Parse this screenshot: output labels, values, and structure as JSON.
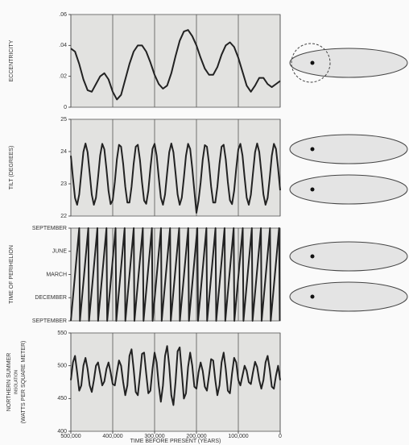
{
  "chart_data": [
    {
      "type": "line",
      "ylabel": [
        "ECCENTRICITY"
      ],
      "color": "#222222",
      "ylim": [
        0,
        0.06
      ],
      "yticks": [
        0,
        {
          "value": 0.02,
          "label": ".02"
        },
        {
          "value": 0.04,
          "label": ".04"
        },
        {
          "value": 0.06,
          "label": ".06"
        }
      ],
      "xlim": [
        500000,
        0
      ],
      "grid": true,
      "x": [
        500000,
        490000,
        480000,
        470000,
        460000,
        450000,
        440000,
        430000,
        420000,
        410000,
        400000,
        390000,
        380000,
        370000,
        360000,
        350000,
        340000,
        330000,
        320000,
        310000,
        300000,
        290000,
        280000,
        270000,
        260000,
        250000,
        240000,
        230000,
        220000,
        210000,
        200000,
        190000,
        180000,
        170000,
        160000,
        150000,
        140000,
        130000,
        120000,
        110000,
        100000,
        90000,
        80000,
        70000,
        60000,
        50000,
        40000,
        30000,
        20000,
        10000,
        0
      ],
      "values": [
        0.038,
        0.036,
        0.028,
        0.018,
        0.011,
        0.01,
        0.015,
        0.02,
        0.022,
        0.018,
        0.01,
        0.005,
        0.008,
        0.018,
        0.028,
        0.036,
        0.04,
        0.04,
        0.036,
        0.029,
        0.021,
        0.015,
        0.012,
        0.014,
        0.022,
        0.033,
        0.043,
        0.049,
        0.05,
        0.046,
        0.04,
        0.032,
        0.025,
        0.021,
        0.021,
        0.026,
        0.034,
        0.04,
        0.042,
        0.039,
        0.032,
        0.023,
        0.014,
        0.01,
        0.014,
        0.019,
        0.019,
        0.015,
        0.013,
        0.015,
        0.017
      ]
    },
    {
      "type": "line",
      "ylabel": [
        "TILT (DEGREES)"
      ],
      "color": "#222222",
      "ylim": [
        22,
        25
      ],
      "yticks": [
        22,
        23,
        24,
        25
      ],
      "xlim": [
        500000,
        0
      ],
      "grid": true,
      "x": [
        500000,
        495000,
        490000,
        485000,
        480000,
        475000,
        470000,
        465000,
        460000,
        455000,
        450000,
        445000,
        440000,
        435000,
        430000,
        425000,
        420000,
        415000,
        410000,
        405000,
        400000,
        395000,
        390000,
        385000,
        380000,
        375000,
        370000,
        365000,
        360000,
        355000,
        350000,
        345000,
        340000,
        335000,
        330000,
        325000,
        320000,
        315000,
        310000,
        305000,
        300000,
        295000,
        290000,
        285000,
        280000,
        275000,
        270000,
        265000,
        260000,
        255000,
        250000,
        245000,
        240000,
        235000,
        230000,
        225000,
        220000,
        215000,
        210000,
        205000,
        200000,
        195000,
        190000,
        185000,
        180000,
        175000,
        170000,
        165000,
        160000,
        155000,
        150000,
        145000,
        140000,
        135000,
        130000,
        125000,
        120000,
        115000,
        110000,
        105000,
        100000,
        95000,
        90000,
        85000,
        80000,
        75000,
        70000,
        65000,
        60000,
        55000,
        50000,
        45000,
        40000,
        35000,
        30000,
        25000,
        20000,
        15000,
        10000,
        5000,
        0
      ],
      "values": [
        23.87,
        23.18,
        22.56,
        22.35,
        22.67,
        23.34,
        23.99,
        24.25,
        23.98,
        23.33,
        22.66,
        22.35,
        22.57,
        23.2,
        23.88,
        24.24,
        24.07,
        23.47,
        22.78,
        22.37,
        22.49,
        23.05,
        23.76,
        24.21,
        24.15,
        23.62,
        22.91,
        22.42,
        22.42,
        22.91,
        23.62,
        24.15,
        24.21,
        23.75,
        23.05,
        22.48,
        22.38,
        22.78,
        23.48,
        24.08,
        24.24,
        23.87,
        23.19,
        22.57,
        22.35,
        22.67,
        23.34,
        23.98,
        24.25,
        23.98,
        23.34,
        22.67,
        22.35,
        22.57,
        23.19,
        23.87,
        24.24,
        24.08,
        23.48,
        22.78,
        22.1,
        22.48,
        23.04,
        23.75,
        24.2,
        24.15,
        23.63,
        22.92,
        22.42,
        22.42,
        22.91,
        23.62,
        24.15,
        24.21,
        23.76,
        23.05,
        22.49,
        22.37,
        22.78,
        23.47,
        24.07,
        24.24,
        23.88,
        23.2,
        22.57,
        22.35,
        22.66,
        23.33,
        23.98,
        24.25,
        23.99,
        23.35,
        22.67,
        22.35,
        22.56,
        23.18,
        23.87,
        24.24,
        24.08,
        23.49,
        22.8
      ]
    },
    {
      "type": "line",
      "ylabel": [
        "TIME OF PERIHELION"
      ],
      "color": "#222222",
      "ylim": [
        0,
        12
      ],
      "yticks": [
        {
          "value": 0,
          "label": "SEPTEMBER"
        },
        {
          "value": 3,
          "label": "DECEMBER"
        },
        {
          "value": 6,
          "label": "MARCH"
        },
        {
          "value": 9,
          "label": "JUNE"
        },
        {
          "value": 12,
          "label": "SEPTEMBER"
        }
      ],
      "xlim": [
        500000,
        0
      ],
      "grid": true,
      "x": [
        500000,
        480000,
        478300,
        458300,
        456600,
        436600,
        434900,
        414900,
        413200,
        393200,
        391500,
        371500,
        369800,
        349800,
        348100,
        328100,
        326400,
        306400,
        304700,
        284700,
        283000,
        263000,
        261300,
        241300,
        239600,
        219600,
        217900,
        197900,
        196200,
        176200,
        174500,
        154500,
        152800,
        132800,
        131100,
        111100,
        109400,
        89400,
        87700,
        67700,
        66000,
        46000,
        44300,
        24300,
        22600,
        2600,
        900
      ],
      "values": [
        0,
        12,
        0,
        12,
        0,
        12,
        0,
        12,
        0,
        12,
        0,
        12,
        0,
        12,
        0,
        12,
        0,
        12,
        0,
        12,
        0,
        12,
        0,
        12,
        0,
        12,
        0,
        12,
        0,
        12,
        0,
        12,
        0,
        12,
        0,
        12,
        0,
        12,
        0,
        12,
        0,
        12,
        0,
        12,
        0,
        12,
        0
      ]
    },
    {
      "type": "line",
      "ylabel": [
        "NORTHERN SUMMER",
        "INSOLATION",
        "(WATTS PER SQUARE METER)"
      ],
      "color": "#222222",
      "ylim": [
        400,
        550
      ],
      "yticks": [
        400,
        450,
        500,
        550
      ],
      "xlim": [
        500000,
        0
      ],
      "grid": true,
      "xlabel": "TIME BEFORE PRESENT (YEARS)",
      "xticks": [
        {
          "value": 500000,
          "label": "500,000"
        },
        {
          "value": 400000,
          "label": "400,000"
        },
        {
          "value": 300000,
          "label": "300,000"
        },
        {
          "value": 200000,
          "label": "200,000"
        },
        {
          "value": 100000,
          "label": "100,000"
        },
        0
      ],
      "x": [
        500000,
        495000,
        490000,
        485000,
        480000,
        475000,
        470000,
        465000,
        460000,
        455000,
        450000,
        445000,
        440000,
        435000,
        430000,
        425000,
        420000,
        415000,
        410000,
        405000,
        400000,
        395000,
        390000,
        385000,
        380000,
        375000,
        370000,
        365000,
        360000,
        355000,
        350000,
        345000,
        340000,
        335000,
        330000,
        325000,
        320000,
        315000,
        310000,
        305000,
        300000,
        295000,
        290000,
        285000,
        280000,
        275000,
        270000,
        265000,
        260000,
        255000,
        250000,
        245000,
        240000,
        235000,
        230000,
        225000,
        220000,
        215000,
        210000,
        205000,
        200000,
        195000,
        190000,
        185000,
        180000,
        175000,
        170000,
        165000,
        160000,
        155000,
        150000,
        145000,
        140000,
        135000,
        130000,
        125000,
        120000,
        115000,
        110000,
        105000,
        100000,
        95000,
        90000,
        85000,
        80000,
        75000,
        70000,
        65000,
        60000,
        55000,
        50000,
        45000,
        40000,
        35000,
        30000,
        25000,
        20000,
        15000,
        10000,
        5000,
        0
      ],
      "values": [
        478,
        505,
        515,
        490,
        462,
        470,
        500,
        512,
        495,
        470,
        460,
        478,
        500,
        505,
        488,
        470,
        476,
        495,
        505,
        490,
        472,
        470,
        490,
        508,
        500,
        475,
        455,
        470,
        515,
        525,
        495,
        460,
        455,
        485,
        518,
        520,
        488,
        458,
        462,
        495,
        520,
        505,
        470,
        445,
        470,
        515,
        530,
        500,
        455,
        440,
        475,
        522,
        528,
        490,
        450,
        458,
        498,
        520,
        500,
        468,
        465,
        490,
        505,
        492,
        468,
        462,
        485,
        510,
        508,
        478,
        455,
        470,
        505,
        520,
        495,
        462,
        458,
        488,
        512,
        505,
        478,
        470,
        485,
        500,
        492,
        475,
        472,
        490,
        506,
        498,
        478,
        465,
        478,
        505,
        515,
        495,
        468,
        465,
        485,
        500,
        478
      ]
    }
  ]
}
